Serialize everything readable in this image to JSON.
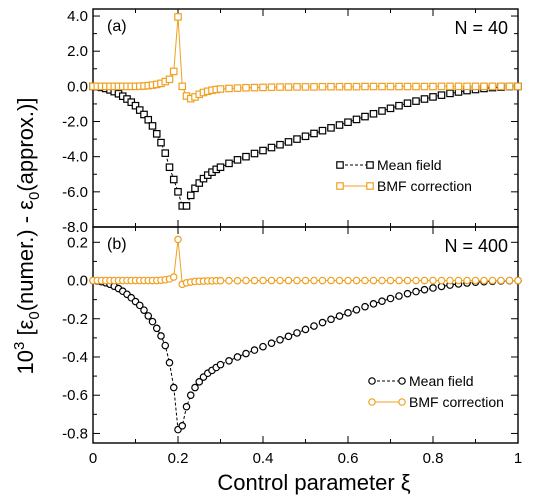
{
  "figure": {
    "xlabel": "Control parameter ξ",
    "ylabel_parts": {
      "power": "10",
      "exponent": "3",
      "bracket_open": " [",
      "eps1": "ε",
      "sub1": "0",
      "paren1": "(numer.)",
      "minus": " - ",
      "eps2": "ε",
      "sub2": "0",
      "paren2": "(approx.)]"
    },
    "x_ticks": [
      "0",
      "0.2",
      "0.4",
      "0.6",
      "0.8",
      "1"
    ]
  },
  "colors": {
    "mean_field": "#000000",
    "bmf": "#f0a020"
  },
  "chart_data": [
    {
      "type": "line",
      "panel_label": "(a)",
      "annotation": "N = 40",
      "xlim": [
        0,
        1
      ],
      "ylim": [
        -8,
        4.4
      ],
      "y_ticks": [
        "4.0",
        "2.0",
        "0.0",
        "-2.0",
        "-4.0",
        "-6.0",
        "-8.0"
      ],
      "y_tick_values": [
        4,
        2,
        0,
        -2,
        -4,
        -6,
        -8
      ],
      "marker": "square",
      "series": [
        {
          "name": "Mean field",
          "dashed": true,
          "x": [
            0.0,
            0.01,
            0.02,
            0.03,
            0.04,
            0.05,
            0.06,
            0.07,
            0.08,
            0.09,
            0.1,
            0.11,
            0.12,
            0.13,
            0.14,
            0.15,
            0.16,
            0.17,
            0.18,
            0.19,
            0.2,
            0.21,
            0.22,
            0.23,
            0.24,
            0.25,
            0.26,
            0.27,
            0.28,
            0.29,
            0.3,
            0.32,
            0.34,
            0.36,
            0.38,
            0.4,
            0.42,
            0.44,
            0.46,
            0.48,
            0.5,
            0.52,
            0.54,
            0.56,
            0.58,
            0.6,
            0.62,
            0.64,
            0.66,
            0.68,
            0.7,
            0.72,
            0.74,
            0.76,
            0.78,
            0.8,
            0.82,
            0.84,
            0.86,
            0.88,
            0.9,
            0.92,
            0.94,
            0.96,
            0.98,
            1.0
          ],
          "y": [
            0.0,
            -0.02,
            -0.06,
            -0.12,
            -0.2,
            -0.3,
            -0.42,
            -0.56,
            -0.72,
            -0.9,
            -1.1,
            -1.35,
            -1.6,
            -1.9,
            -2.25,
            -2.7,
            -3.2,
            -3.8,
            -4.6,
            -5.3,
            -6.0,
            -6.8,
            -6.8,
            -6.2,
            -5.8,
            -5.5,
            -5.25,
            -5.05,
            -4.88,
            -4.72,
            -4.6,
            -4.38,
            -4.18,
            -4.0,
            -3.82,
            -3.65,
            -3.48,
            -3.32,
            -3.16,
            -3.0,
            -2.84,
            -2.68,
            -2.52,
            -2.36,
            -2.2,
            -2.04,
            -1.88,
            -1.72,
            -1.56,
            -1.4,
            -1.25,
            -1.1,
            -0.96,
            -0.84,
            -0.72,
            -0.6,
            -0.5,
            -0.4,
            -0.32,
            -0.24,
            -0.18,
            -0.12,
            -0.07,
            -0.04,
            -0.01,
            0.0
          ]
        },
        {
          "name": "BMF correction",
          "dashed": false,
          "x": [
            0.0,
            0.01,
            0.02,
            0.03,
            0.04,
            0.05,
            0.06,
            0.07,
            0.08,
            0.09,
            0.1,
            0.11,
            0.12,
            0.13,
            0.14,
            0.15,
            0.16,
            0.17,
            0.18,
            0.19,
            0.2,
            0.21,
            0.22,
            0.23,
            0.24,
            0.25,
            0.26,
            0.27,
            0.28,
            0.29,
            0.3,
            0.32,
            0.34,
            0.36,
            0.38,
            0.4,
            0.42,
            0.44,
            0.46,
            0.48,
            0.5,
            0.52,
            0.54,
            0.56,
            0.58,
            0.6,
            0.62,
            0.64,
            0.66,
            0.68,
            0.7,
            0.72,
            0.74,
            0.76,
            0.78,
            0.8,
            0.82,
            0.84,
            0.86,
            0.88,
            0.9,
            0.92,
            0.94,
            0.96,
            0.98,
            1.0
          ],
          "y": [
            0.0,
            0.0,
            0.0,
            0.0,
            0.0,
            0.0,
            0.0,
            0.0,
            0.0,
            0.0,
            0.0,
            0.01,
            0.02,
            0.04,
            0.07,
            0.11,
            0.17,
            0.27,
            0.4,
            0.85,
            3.95,
            0.0,
            -0.55,
            -0.7,
            -0.6,
            -0.45,
            -0.35,
            -0.28,
            -0.22,
            -0.18,
            -0.15,
            -0.12,
            -0.1,
            -0.08,
            -0.07,
            -0.06,
            -0.05,
            -0.04,
            -0.04,
            -0.03,
            -0.03,
            -0.03,
            -0.02,
            -0.02,
            -0.02,
            -0.02,
            -0.02,
            -0.01,
            -0.01,
            -0.01,
            -0.01,
            -0.01,
            -0.01,
            -0.01,
            -0.01,
            -0.01,
            0.0,
            0.0,
            0.0,
            0.0,
            0.0,
            0.0,
            0.0,
            0.0,
            0.0,
            0.0
          ]
        }
      ]
    },
    {
      "type": "line",
      "panel_label": "(b)",
      "annotation": "N = 400",
      "xlim": [
        0,
        1
      ],
      "ylim": [
        -0.85,
        0.28
      ],
      "y_ticks": [
        "0.2",
        "0.0",
        "-0.2",
        "-0.4",
        "-0.6",
        "-0.8"
      ],
      "y_tick_values": [
        0.2,
        0.0,
        -0.2,
        -0.4,
        -0.6,
        -0.8
      ],
      "marker": "circle",
      "series": [
        {
          "name": "Mean field",
          "dashed": true,
          "x": [
            0.0,
            0.01,
            0.02,
            0.03,
            0.04,
            0.05,
            0.06,
            0.07,
            0.08,
            0.09,
            0.1,
            0.11,
            0.12,
            0.13,
            0.14,
            0.15,
            0.16,
            0.17,
            0.18,
            0.19,
            0.2,
            0.21,
            0.22,
            0.23,
            0.24,
            0.25,
            0.26,
            0.27,
            0.28,
            0.29,
            0.3,
            0.32,
            0.34,
            0.36,
            0.38,
            0.4,
            0.42,
            0.44,
            0.46,
            0.48,
            0.5,
            0.52,
            0.54,
            0.56,
            0.58,
            0.6,
            0.62,
            0.64,
            0.66,
            0.68,
            0.7,
            0.72,
            0.74,
            0.76,
            0.78,
            0.8,
            0.82,
            0.84,
            0.86,
            0.88,
            0.9,
            0.92,
            0.94,
            0.96,
            0.98,
            1.0
          ],
          "y": [
            0.0,
            -0.002,
            -0.006,
            -0.012,
            -0.02,
            -0.03,
            -0.042,
            -0.056,
            -0.072,
            -0.09,
            -0.11,
            -0.13,
            -0.155,
            -0.185,
            -0.215,
            -0.25,
            -0.29,
            -0.34,
            -0.43,
            -0.56,
            -0.78,
            -0.76,
            -0.66,
            -0.6,
            -0.56,
            -0.53,
            -0.505,
            -0.485,
            -0.47,
            -0.455,
            -0.44,
            -0.42,
            -0.4,
            -0.382,
            -0.364,
            -0.346,
            -0.328,
            -0.31,
            -0.292,
            -0.274,
            -0.256,
            -0.238,
            -0.22,
            -0.203,
            -0.186,
            -0.169,
            -0.153,
            -0.137,
            -0.122,
            -0.108,
            -0.094,
            -0.081,
            -0.069,
            -0.058,
            -0.048,
            -0.039,
            -0.031,
            -0.024,
            -0.018,
            -0.013,
            -0.009,
            -0.006,
            -0.004,
            -0.002,
            -0.001,
            0.0
          ]
        },
        {
          "name": "BMF correction",
          "dashed": false,
          "x": [
            0.0,
            0.01,
            0.02,
            0.03,
            0.04,
            0.05,
            0.06,
            0.07,
            0.08,
            0.09,
            0.1,
            0.11,
            0.12,
            0.13,
            0.14,
            0.15,
            0.16,
            0.17,
            0.18,
            0.19,
            0.2,
            0.21,
            0.22,
            0.23,
            0.24,
            0.25,
            0.26,
            0.27,
            0.28,
            0.29,
            0.3,
            0.32,
            0.34,
            0.36,
            0.38,
            0.4,
            0.42,
            0.44,
            0.46,
            0.48,
            0.5,
            0.52,
            0.54,
            0.56,
            0.58,
            0.6,
            0.62,
            0.64,
            0.66,
            0.68,
            0.7,
            0.72,
            0.74,
            0.76,
            0.78,
            0.8,
            0.82,
            0.84,
            0.86,
            0.88,
            0.9,
            0.92,
            0.94,
            0.96,
            0.98,
            1.0
          ],
          "y": [
            0.0,
            0.0,
            0.0,
            0.0,
            0.0,
            0.0,
            0.0,
            0.0,
            0.0,
            0.0,
            0.0,
            0.0,
            0.0,
            0.0,
            0.0,
            0.0,
            0.002,
            0.004,
            0.008,
            0.018,
            0.215,
            -0.02,
            -0.012,
            -0.008,
            -0.005,
            -0.004,
            -0.003,
            -0.002,
            -0.002,
            -0.001,
            -0.001,
            -0.001,
            -0.001,
            0.0,
            0.0,
            0.0,
            0.0,
            0.0,
            0.0,
            0.0,
            0.0,
            0.0,
            0.0,
            0.0,
            0.0,
            0.0,
            0.0,
            0.0,
            0.0,
            0.0,
            0.0,
            0.0,
            0.0,
            0.0,
            0.0,
            0.0,
            0.0,
            0.0,
            0.0,
            0.0,
            0.0,
            0.0,
            0.0,
            0.0,
            0.0,
            0.0
          ]
        }
      ]
    }
  ]
}
